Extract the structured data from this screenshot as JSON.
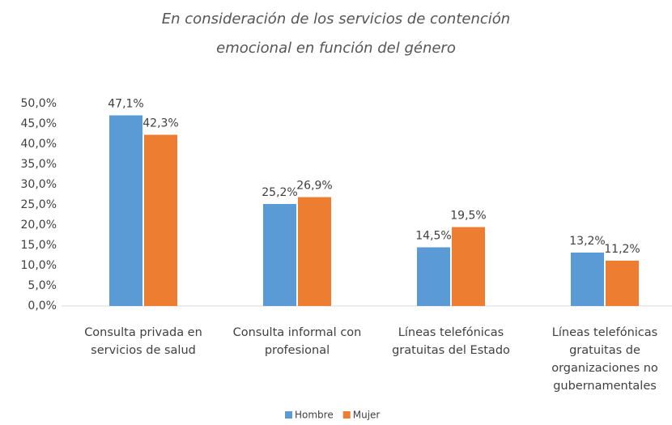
{
  "chart_data": {
    "type": "bar",
    "title": "En consideración de los servicios de contención emocional en función del género",
    "categories": [
      "Consulta privada en servicios de salud",
      "Consulta informal con profesional",
      "Líneas telefónicas gratuitas del Estado",
      "Líneas telefónicas gratuitas de organizaciones no gubernamentales"
    ],
    "series": [
      {
        "name": "Hombre",
        "color": "#5b9bd5",
        "values": [
          47.1,
          25.2,
          14.5,
          13.2
        ],
        "value_labels": [
          "47,1%",
          "25,2%",
          "14,5%",
          "13,2%"
        ]
      },
      {
        "name": "Mujer",
        "color": "#ed7d31",
        "values": [
          42.3,
          26.9,
          19.5,
          11.2
        ],
        "value_labels": [
          "42,3%",
          "26,9%",
          "19,5%",
          "11,2%"
        ]
      }
    ],
    "ylim": [
      0,
      50
    ],
    "yticks": [
      {
        "value": 0,
        "label": "0,0%"
      },
      {
        "value": 5,
        "label": "5,0%"
      },
      {
        "value": 10,
        "label": "10,0%"
      },
      {
        "value": 15,
        "label": "15,0%"
      },
      {
        "value": 20,
        "label": "20,0%"
      },
      {
        "value": 25,
        "label": "25,0%"
      },
      {
        "value": 30,
        "label": "30,0%"
      },
      {
        "value": 35,
        "label": "35,0%"
      },
      {
        "value": 40,
        "label": "40,0%"
      },
      {
        "value": 45,
        "label": "45,0%"
      },
      {
        "value": 50,
        "label": "50,0%"
      }
    ],
    "grid": false,
    "legend": "bottom"
  }
}
